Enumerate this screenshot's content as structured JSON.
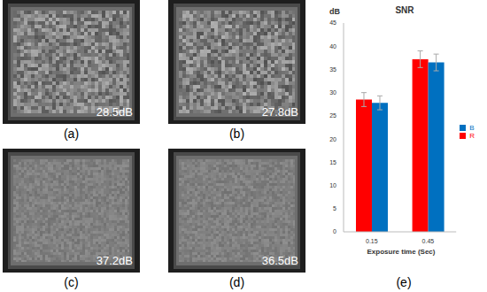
{
  "panels": [
    {
      "label": "(a)",
      "text": "28.5dB"
    },
    {
      "label": "(b)",
      "text": "27.8dB"
    },
    {
      "label": "(c)",
      "text": "37.2dB"
    },
    {
      "label": "(d)",
      "text": "36.5dB"
    }
  ],
  "chart_label": "(e)",
  "chart_data": {
    "type": "bar",
    "title": "SNR",
    "y_label": "dB",
    "x_label": "Exposure time (Sec)",
    "categories": [
      "0.15",
      "0.45"
    ],
    "series": [
      {
        "name": "R",
        "color": "#ff0000",
        "values": [
          28.5,
          37.2
        ],
        "errors": [
          1.5,
          1.8
        ]
      },
      {
        "name": "B",
        "color": "#0070c0",
        "values": [
          27.8,
          36.5
        ],
        "errors": [
          1.5,
          1.8
        ]
      }
    ],
    "ylim": [
      0,
      45
    ],
    "yticks": [
      0,
      5,
      10,
      15,
      20,
      25,
      30,
      35,
      40,
      45
    ],
    "grid": false,
    "legend": "right"
  }
}
